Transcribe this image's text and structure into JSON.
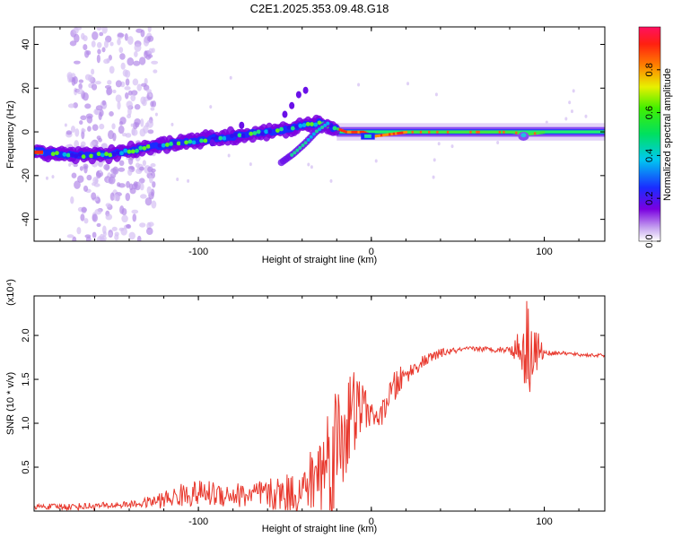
{
  "chart_data": [
    {
      "type": "heatmap",
      "title": "C2E1.2025.353.09.48.G18",
      "xlabel": "Height of straight line (km)",
      "ylabel": "Frequency (Hz)",
      "xlim": [
        -195,
        135
      ],
      "ylim": [
        -50,
        48
      ],
      "xticks": [
        -100,
        0,
        100
      ],
      "yticks": [
        -40,
        -20,
        0,
        20,
        40
      ],
      "colorbar": {
        "label": "Normalized spectral amplitude",
        "range": [
          0.0,
          1.0
        ],
        "ticks": [
          0.0,
          0.2,
          0.4,
          0.6,
          0.8
        ]
      },
      "ridge": {
        "x": [
          -195,
          -180,
          -165,
          -150,
          -135,
          -120,
          -100,
          -80,
          -60,
          -45,
          -30,
          -22,
          -15,
          -5,
          0,
          10,
          20,
          40,
          60,
          80,
          90,
          100,
          135
        ],
        "y": [
          -9,
          -10,
          -11,
          -10,
          -8,
          -6,
          -4,
          -2,
          0,
          2,
          4,
          2,
          0,
          0,
          -2,
          -1,
          0,
          0,
          0,
          0,
          -1,
          0,
          0
        ]
      },
      "branch": {
        "x": [
          -52,
          -45,
          -38,
          -32,
          -25
        ],
        "y": [
          -14,
          -10,
          -5,
          0,
          4
        ]
      }
    },
    {
      "type": "line",
      "title": "",
      "xlabel": "Height of straight line (km)",
      "ylabel": "SNR (10 * v/v)",
      "yunit": "(x10⁴)",
      "xlim": [
        -195,
        135
      ],
      "ylim": [
        0,
        2.45
      ],
      "xticks": [
        -100,
        0,
        100
      ],
      "yticks": [
        0.5,
        1.0,
        1.5,
        2.0
      ],
      "ytick_labels": [
        "0.5",
        "1.0",
        "1.5",
        "2.0"
      ],
      "color": "#e8382d",
      "series": [
        {
          "name": "SNR",
          "x": [
            -195,
            -175,
            -155,
            -135,
            -120,
            -105,
            -90,
            -75,
            -60,
            -50,
            -40,
            -30,
            -25,
            -20,
            -15,
            -10,
            -5,
            0,
            5,
            10,
            15,
            20,
            30,
            40,
            50,
            60,
            70,
            80,
            85,
            90,
            95,
            100,
            110,
            120,
            135
          ],
          "y": [
            0.05,
            0.05,
            0.06,
            0.08,
            0.13,
            0.2,
            0.2,
            0.18,
            0.18,
            0.2,
            0.22,
            0.45,
            0.6,
            0.75,
            1.0,
            1.1,
            1.2,
            1.1,
            1.05,
            1.3,
            1.45,
            1.55,
            1.7,
            1.8,
            1.83,
            1.85,
            1.84,
            1.84,
            1.85,
            1.9,
            1.82,
            1.8,
            1.8,
            1.78,
            1.77
          ],
          "noise": [
            0.03,
            0.04,
            0.04,
            0.04,
            0.1,
            0.15,
            0.15,
            0.15,
            0.18,
            0.22,
            0.25,
            0.5,
            0.7,
            0.8,
            0.7,
            0.5,
            0.3,
            0.12,
            0.12,
            0.15,
            0.2,
            0.1,
            0.07,
            0.05,
            0.03,
            0.03,
            0.03,
            0.04,
            0.2,
            0.6,
            0.35,
            0.03,
            0.02,
            0.02,
            0.02
          ]
        }
      ]
    }
  ]
}
